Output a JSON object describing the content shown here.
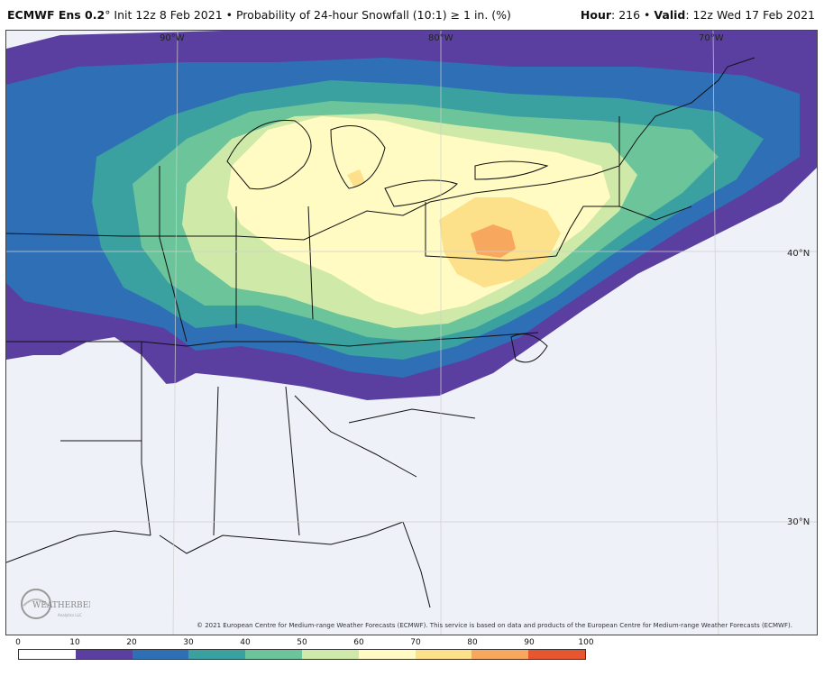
{
  "header": {
    "model": "ECMWF Ens 0.2",
    "degree": "°",
    "init": " Init 12z 8 Feb 2021 • Probability of 24-hour Snowfall (10:1) ≥ 1 in. (%)",
    "hour_label": "Hour",
    "hour_value": ": 216 • ",
    "valid_label": "Valid",
    "valid_value": ": 12z Wed 17 Feb 2021"
  },
  "map": {
    "lon_labels": [
      "90°W",
      "80°W",
      "70°W"
    ],
    "lat_labels": [
      "40°N",
      "30°N"
    ]
  },
  "copyright": "© 2021 European Centre for Medium-range Weather Forecasts (ECMWF). This service is based on data and products of the European Centre for Medium-range Weather Forecasts (ECMWF).",
  "logo": {
    "text": "WEATHERBELL",
    "sub": "Analytics LLC"
  },
  "colorbar": {
    "ticks": [
      "0",
      "10",
      "20",
      "30",
      "40",
      "50",
      "60",
      "70",
      "80",
      "90",
      "100"
    ],
    "colors": [
      "#ffffff",
      "#5a3fa0",
      "#2f6fb6",
      "#3aa0a0",
      "#6cc49a",
      "#cfeaa8",
      "#fffbc2",
      "#fde08a",
      "#f7a85e",
      "#e8562f",
      "#9c0f3e"
    ]
  }
}
